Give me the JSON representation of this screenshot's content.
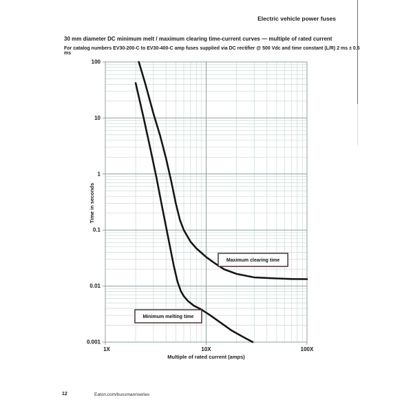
{
  "page": {
    "header": {
      "title": "Electric vehicle power fuses"
    },
    "heading": {
      "title": "30 mm diameter DC minimum melt / maximum clearing time-current curves — multiple of rated current",
      "subtitle": "For catalog numbers EV30-200-C to EV30-400-C amp fuses supplied via DC rectifier @ 500 Vdc and time constant (L/R) 2 ms ± 0.5 ms"
    },
    "footer": {
      "page_number": "12",
      "website": "Eaton.com/bussmannseries"
    }
  },
  "chart_data": {
    "type": "line",
    "title": "30 mm diameter DC minimum melt / maximum clearing time-current curves — multiple of rated current",
    "x_axis": {
      "label": "Multiple of rated current (amps)",
      "scale": "log",
      "min": 1,
      "max": 100,
      "tick_values": [
        1,
        10,
        100
      ],
      "tick_labels": [
        "1X",
        "10X",
        "100X"
      ]
    },
    "y_axis": {
      "label": "Time in seconds",
      "scale": "log",
      "min": 0.001,
      "max": 100,
      "tick_values": [
        100,
        10,
        1,
        0.1,
        0.01,
        0.001
      ],
      "tick_labels": [
        "100",
        "10",
        "1",
        "0.1",
        "0.01",
        "0.001"
      ]
    },
    "grid": {
      "minor": true,
      "minor_color": "#ccd9d4",
      "major_color": "#8fa19c"
    },
    "series": [
      {
        "name": "Maximum clearing time",
        "color": "#151515",
        "points": [
          [
            2.15,
            100
          ],
          [
            2.5,
            40
          ],
          [
            3.0,
            12
          ],
          [
            3.5,
            4.8
          ],
          [
            4.0,
            1.9
          ],
          [
            4.5,
            0.75
          ],
          [
            5.0,
            0.3
          ],
          [
            5.5,
            0.15
          ],
          [
            6.0,
            0.1
          ],
          [
            7.0,
            0.062
          ],
          [
            8.0,
            0.047
          ],
          [
            10,
            0.033
          ],
          [
            12,
            0.026
          ],
          [
            15,
            0.02
          ],
          [
            20,
            0.0165
          ],
          [
            30,
            0.0143
          ],
          [
            50,
            0.0137
          ],
          [
            70,
            0.0134
          ],
          [
            100,
            0.0133
          ]
        ]
      },
      {
        "name": "Minimum melting time",
        "color": "#151515",
        "points": [
          [
            2.0,
            42
          ],
          [
            2.4,
            10
          ],
          [
            2.8,
            2.8
          ],
          [
            3.2,
            0.9
          ],
          [
            3.6,
            0.3
          ],
          [
            4.0,
            0.115
          ],
          [
            4.4,
            0.048
          ],
          [
            4.8,
            0.022
          ],
          [
            5.2,
            0.012
          ],
          [
            5.6,
            0.0082
          ],
          [
            6.0,
            0.0066
          ],
          [
            6.6,
            0.0054
          ],
          [
            7.5,
            0.0045
          ],
          [
            9,
            0.0038
          ],
          [
            11,
            0.003
          ],
          [
            14,
            0.0022
          ],
          [
            18,
            0.0016
          ],
          [
            23,
            0.00125
          ],
          [
            29,
            0.001
          ]
        ]
      }
    ],
    "annotations": [
      {
        "text": "Maximum clearing time",
        "x": 13.17,
        "y": 0.0384
      },
      {
        "text": "Minimum melting time",
        "x": 1.965,
        "y": 0.00378
      }
    ],
    "annotation_style": {
      "border_color": "#3a2726",
      "fill": "#ffffff"
    }
  }
}
